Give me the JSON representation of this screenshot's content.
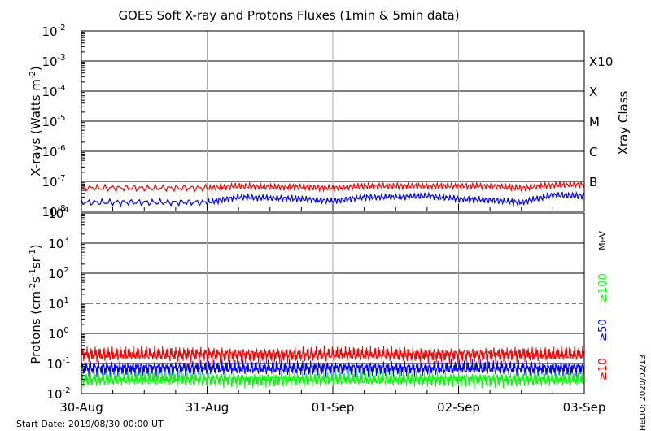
{
  "title": "GOES Soft X-ray and Protons Fluxes   (1min & 5min data)",
  "footer": {
    "start_date": "Start Date: 2019/08/30 00:00 UT",
    "credit": "HELIO: 2020/02/13"
  },
  "colors": {
    "xray_long": "#ff0000",
    "xray_short": "#0000ff",
    "proton_10": "#ff0000",
    "proton_50": "#0000ff",
    "proton_100": "#00ff00"
  },
  "chart_data": [
    {
      "type": "line",
      "panel": "xray",
      "ylabel": "X-rays (Watts m",
      "ylabel_sup": "-2",
      "ylabel_end": ")",
      "yscale": "log",
      "ylim": [
        1e-08,
        0.01
      ],
      "ytick_labels": [
        {
          "base": "10",
          "exp": "-8",
          "value": 1e-08
        },
        {
          "base": "10",
          "exp": "-7",
          "value": 1e-07
        },
        {
          "base": "10",
          "exp": "-6",
          "value": 1e-06
        },
        {
          "base": "10",
          "exp": "-5",
          "value": 1e-05
        },
        {
          "base": "10",
          "exp": "-4",
          "value": 0.0001
        },
        {
          "base": "10",
          "exp": "-3",
          "value": 0.001
        },
        {
          "base": "10",
          "exp": "-2",
          "value": 0.01
        }
      ],
      "right_label": "Xray Class",
      "class_labels": [
        {
          "label": "B",
          "value": 1e-07
        },
        {
          "label": "C",
          "value": 1e-06
        },
        {
          "label": "M",
          "value": 1e-05
        },
        {
          "label": "X",
          "value": 0.0001
        },
        {
          "label": "X10",
          "value": 0.001
        }
      ],
      "x": [
        "2019-08-30 00:00",
        "2019-08-30 12:00",
        "2019-08-31 00:00",
        "2019-08-31 06:00",
        "2019-08-31 12:00",
        "2019-08-31 18:00",
        "2019-09-01 00:00",
        "2019-09-01 06:00",
        "2019-09-01 12:00",
        "2019-09-01 18:00",
        "2019-09-02 00:00",
        "2019-09-02 06:00",
        "2019-09-02 12:00",
        "2019-09-02 18:00",
        "2019-09-03 00:00"
      ],
      "series": [
        {
          "color_key": "xray_long",
          "values": [
            6e-08,
            6e-08,
            6e-08,
            7e-08,
            6.5e-08,
            6.5e-08,
            6e-08,
            7e-08,
            7e-08,
            7e-08,
            7e-08,
            7e-08,
            6e-08,
            7.5e-08,
            8e-08
          ]
        },
        {
          "color_key": "xray_short",
          "values": [
            2e-08,
            2e-08,
            2e-08,
            3e-08,
            2.8e-08,
            2.6e-08,
            2.2e-08,
            3e-08,
            3e-08,
            3.3e-08,
            2.6e-08,
            2.4e-08,
            2e-08,
            3.5e-08,
            3.3e-08
          ]
        }
      ]
    },
    {
      "type": "line",
      "panel": "protons",
      "ylabel": "Protons (cm",
      "ylabel_sup1": "-2",
      "ylabel_mid1": "s",
      "ylabel_sup2": "-1",
      "ylabel_mid2": "sr",
      "ylabel_sup3": "-1",
      "ylabel_end": ")",
      "yscale": "log",
      "ylim": [
        0.01,
        10000
      ],
      "ytick_labels": [
        {
          "base": "10",
          "exp": "-2",
          "value": 0.01
        },
        {
          "base": "10",
          "exp": "-1",
          "value": 0.1
        },
        {
          "base": "10",
          "exp": "0",
          "value": 1
        },
        {
          "base": "10",
          "exp": "1",
          "value": 10
        },
        {
          "base": "10",
          "exp": "2",
          "value": 100
        },
        {
          "base": "10",
          "exp": "3",
          "value": 1000
        },
        {
          "base": "10",
          "exp": "4",
          "value": 10000
        }
      ],
      "threshold_line": 10,
      "energy_unit": "MeV",
      "legend": [
        {
          "label": "≥100",
          "color_key": "proton_100"
        },
        {
          "label": "≥50",
          "color_key": "proton_50"
        },
        {
          "label": "≥10",
          "color_key": "proton_10"
        }
      ],
      "x": [
        "2019-08-30 00:00",
        "2019-08-31 00:00",
        "2019-09-01 00:00",
        "2019-09-02 00:00",
        "2019-09-03 00:00"
      ],
      "series": [
        {
          "name": "≥10",
          "color_key": "proton_10",
          "values": [
            0.2,
            0.2,
            0.2,
            0.2,
            0.2
          ]
        },
        {
          "name": "≥50",
          "color_key": "proton_50",
          "values": [
            0.07,
            0.07,
            0.07,
            0.07,
            0.07
          ]
        },
        {
          "name": "≥100",
          "color_key": "proton_100",
          "values": [
            0.03,
            0.03,
            0.03,
            0.03,
            0.03
          ]
        }
      ]
    }
  ],
  "x_axis": {
    "range": [
      "2019-08-30",
      "2019-09-03"
    ],
    "tick_labels": [
      "30-Aug",
      "31-Aug",
      "01-Sep",
      "02-Sep",
      "03-Sep"
    ]
  }
}
